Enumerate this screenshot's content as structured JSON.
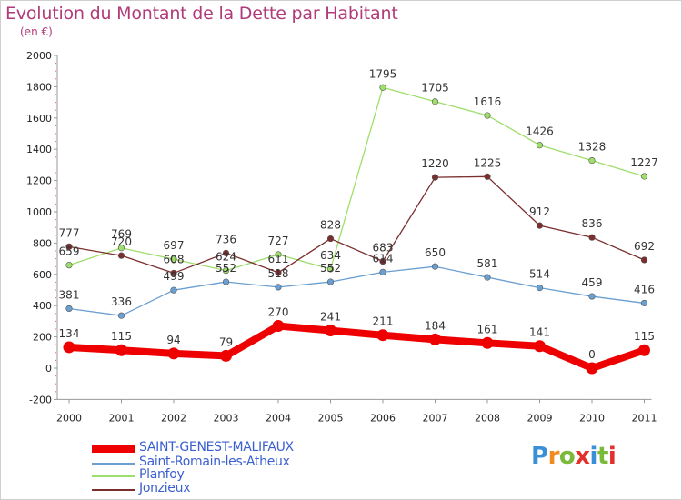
{
  "title": "Evolution du Montant de la Dette par Habitant",
  "subtitle": "(en €)",
  "brand": {
    "letters": [
      "P",
      "r",
      "o",
      "x",
      "i",
      "t",
      "i"
    ],
    "colors": [
      "#3b8fd6",
      "#f08c1f",
      "#7ab93a",
      "#e2312b",
      "#3b8fd6",
      "#7ab93a",
      "#e2312b"
    ]
  },
  "chart_data": {
    "type": "line",
    "title": "Evolution du Montant de la Dette par Habitant",
    "ylabel": "(en €)",
    "xlabel": "",
    "categories": [
      "2000",
      "2001",
      "2002",
      "2003",
      "2004",
      "2005",
      "2006",
      "2007",
      "2008",
      "2009",
      "2010",
      "2011"
    ],
    "ylim": [
      -200,
      2000
    ],
    "yticks": [
      "-200",
      "0",
      "200",
      "400",
      "600",
      "800",
      "1000",
      "1200",
      "1400",
      "1600",
      "1800",
      "2000"
    ],
    "grid": false,
    "legend_position": "bottom-left",
    "series": [
      {
        "name": "SAINT-GENEST-MALIFAUX",
        "color": "#ee0000",
        "values": [
          134,
          115,
          94,
          79,
          270,
          241,
          211,
          184,
          161,
          141,
          0,
          115
        ]
      },
      {
        "name": "Saint-Romain-les-Atheux",
        "color": "#6a9fd0",
        "values": [
          381,
          336,
          499,
          552,
          518,
          552,
          614,
          650,
          581,
          514,
          459,
          416
        ]
      },
      {
        "name": "Planfoy",
        "color": "#9ede6a",
        "values": [
          659,
          769,
          697,
          624,
          727,
          634,
          1795,
          1705,
          1616,
          1426,
          1328,
          1227
        ]
      },
      {
        "name": "Jonzieux",
        "color": "#7a2e2e",
        "values": [
          777,
          720,
          608,
          736,
          611,
          828,
          683,
          1220,
          1225,
          912,
          836,
          692
        ]
      }
    ]
  }
}
